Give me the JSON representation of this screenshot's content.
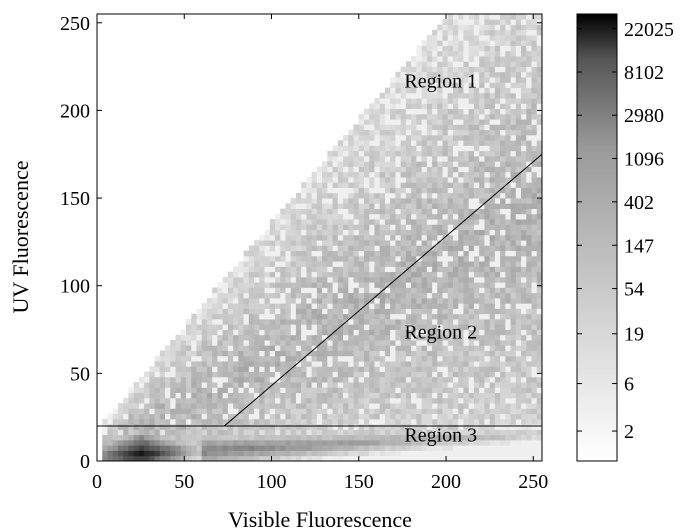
{
  "chart_data": {
    "type": "heatmap",
    "title": "",
    "xlabel": "Visible Fluorescence",
    "ylabel": "UV Fluorescence",
    "xlim": [
      0,
      255
    ],
    "ylim": [
      0,
      255
    ],
    "xticks": [
      "0",
      "50",
      "100",
      "150",
      "200",
      "250"
    ],
    "xtick_values": [
      0,
      50,
      100,
      150,
      200,
      250
    ],
    "yticks": [
      "0",
      "50",
      "100",
      "150",
      "200",
      "250"
    ],
    "ytick_values": [
      0,
      50,
      100,
      150,
      200,
      250
    ],
    "colormap": "gray (white = low count, black = high count), log scale",
    "colorbar": {
      "scale": "log",
      "labels": [
        "22025",
        "8102",
        "2980",
        "1096",
        "402",
        "147",
        "54",
        "19",
        "6",
        "2"
      ],
      "values": [
        22025,
        8102,
        2980,
        1096,
        402,
        147,
        54,
        19,
        6,
        2
      ],
      "low_color": "#ffffff",
      "high_color": "#000000"
    },
    "grid": false,
    "boundary_lines": [
      {
        "x": [
          0,
          255
        ],
        "y": [
          20,
          20
        ]
      },
      {
        "x": [
          73,
          255
        ],
        "y": [
          20,
          175
        ]
      }
    ],
    "regions": [
      {
        "label": "Region 1",
        "x": 197,
        "y": 213
      },
      {
        "label": "Region 2",
        "x": 197,
        "y": 70
      },
      {
        "label": "Region 3",
        "x": 197,
        "y": 11
      }
    ]
  }
}
